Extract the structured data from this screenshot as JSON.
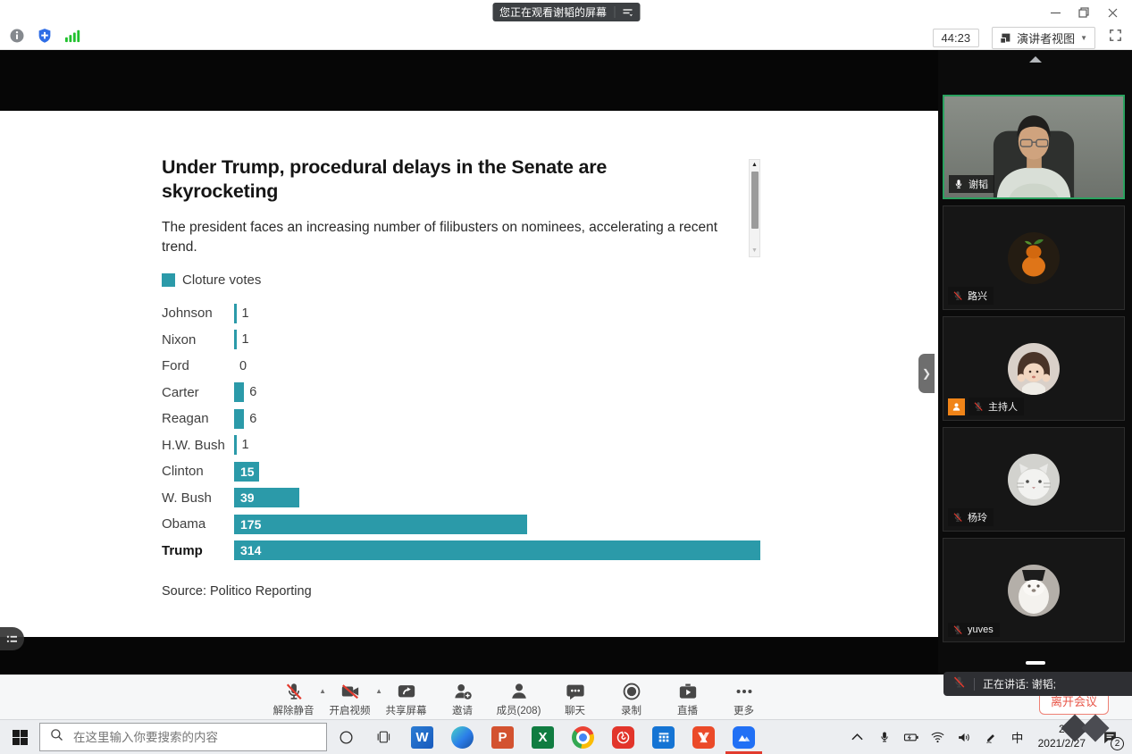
{
  "window": {
    "banner": "您正在观看谢韬的屏幕"
  },
  "topbar": {
    "timer": "44:23",
    "view_mode": "演讲者视图"
  },
  "chart_data": {
    "type": "bar",
    "orientation": "horizontal",
    "title": "Under Trump, procedural delays in the Senate are skyrocketing",
    "subtitle": "The president faces an increasing number of filibusters on nominees, accelerating a recent trend.",
    "legend": [
      {
        "label": "Cloture votes",
        "color": "#2B9AA9"
      }
    ],
    "categories": [
      "Johnson",
      "Nixon",
      "Ford",
      "Carter",
      "Reagan",
      "H.W. Bush",
      "Clinton",
      "W. Bush",
      "Obama",
      "Trump"
    ],
    "values": [
      1,
      1,
      0,
      6,
      6,
      1,
      15,
      39,
      175,
      314
    ],
    "highlight_category": "Trump",
    "xlim": [
      0,
      314
    ],
    "value_label_inside_min": 15,
    "bar_color": "#2B9AA9",
    "source": "Source: Politico Reporting"
  },
  "sidebar": {
    "participants": [
      {
        "name": "谢韬",
        "muted": false,
        "active_speaker": true,
        "video_on": true,
        "avatar": "man-video",
        "host": false
      },
      {
        "name": "路兴",
        "muted": true,
        "active_speaker": false,
        "video_on": false,
        "avatar": "gourd",
        "host": false
      },
      {
        "name": "主持人",
        "muted": true,
        "active_speaker": false,
        "video_on": false,
        "avatar": "girl",
        "host": true
      },
      {
        "name": "杨玲",
        "muted": true,
        "active_speaker": false,
        "video_on": false,
        "avatar": "cat",
        "host": false
      },
      {
        "name": "yuves",
        "muted": true,
        "active_speaker": false,
        "video_on": false,
        "avatar": "dog",
        "host": false
      }
    ],
    "speaking_status": "正在讲话: 谢韬;",
    "leave_button": "离开会议"
  },
  "meeting_toolbar": {
    "items": [
      {
        "id": "unmute",
        "label": "解除静音",
        "icon": "mic-muted-icon",
        "caret": true
      },
      {
        "id": "start-video",
        "label": "开启视频",
        "icon": "camera-muted-icon",
        "caret": true
      },
      {
        "id": "share-screen",
        "label": "共享屏幕",
        "icon": "share-screen-icon",
        "caret": false
      },
      {
        "id": "invite",
        "label": "邀请",
        "icon": "invite-icon",
        "caret": false
      },
      {
        "id": "members",
        "label": "成员(208)",
        "icon": "members-icon",
        "caret": false
      },
      {
        "id": "chat",
        "label": "聊天",
        "icon": "chat-icon",
        "caret": false
      },
      {
        "id": "record",
        "label": "录制",
        "icon": "record-icon",
        "caret": false
      },
      {
        "id": "live",
        "label": "直播",
        "icon": "live-icon",
        "caret": false
      },
      {
        "id": "more",
        "label": "更多",
        "icon": "more-icon",
        "caret": false
      }
    ]
  },
  "taskbar": {
    "search_placeholder": "在这里输入你要搜索的内容",
    "apps": [
      "word-icon",
      "edge-icon",
      "powerpoint-icon",
      "excel-icon",
      "chrome-icon",
      "netease-music-icon",
      "calendar-icon",
      "wps-icon",
      "tencent-meeting-icon"
    ],
    "active_app": "tencent-meeting-icon",
    "tray": {
      "ime": "中",
      "time": "20:32",
      "date": "2021/2/27",
      "notification_badge": "2"
    }
  }
}
